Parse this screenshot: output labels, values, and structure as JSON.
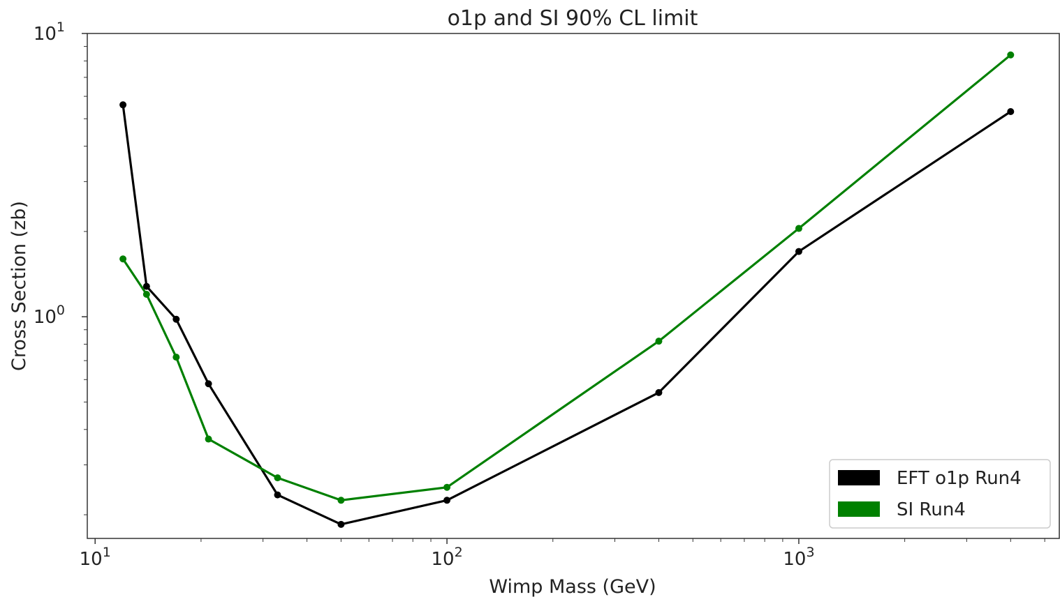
{
  "chart_data": {
    "type": "line",
    "title": "o1p and SI 90% CL limit",
    "xlabel": "Wimp Mass (GeV)",
    "ylabel": "Cross Section (zb)",
    "xscale": "log",
    "yscale": "log",
    "xlim": [
      9.5,
      5500
    ],
    "ylim": [
      0.165,
      10
    ],
    "x_ticks": [
      {
        "value": 10,
        "base": "10",
        "exp": "1"
      },
      {
        "value": 100,
        "base": "10",
        "exp": "2"
      },
      {
        "value": 1000,
        "base": "10",
        "exp": "3"
      }
    ],
    "y_ticks": [
      {
        "value": 1,
        "base": "10",
        "exp": "0"
      },
      {
        "value": 10,
        "base": "10",
        "exp": "1"
      }
    ],
    "grid": false,
    "legend_position": "lower-right",
    "series": [
      {
        "name": "EFT o1p Run4",
        "color": "#000000",
        "x": [
          12,
          14,
          17,
          21,
          33,
          50,
          100,
          400,
          1000,
          4000
        ],
        "y": [
          5.6,
          1.28,
          0.98,
          0.58,
          0.235,
          0.185,
          0.225,
          0.54,
          1.7,
          5.3
        ]
      },
      {
        "name": "SI Run4",
        "color": "#008000",
        "x": [
          12,
          14,
          17,
          21,
          33,
          50,
          100,
          400,
          1000,
          4000
        ],
        "y": [
          1.6,
          1.2,
          0.72,
          0.37,
          0.27,
          0.225,
          0.25,
          0.82,
          2.05,
          8.4
        ]
      }
    ]
  }
}
